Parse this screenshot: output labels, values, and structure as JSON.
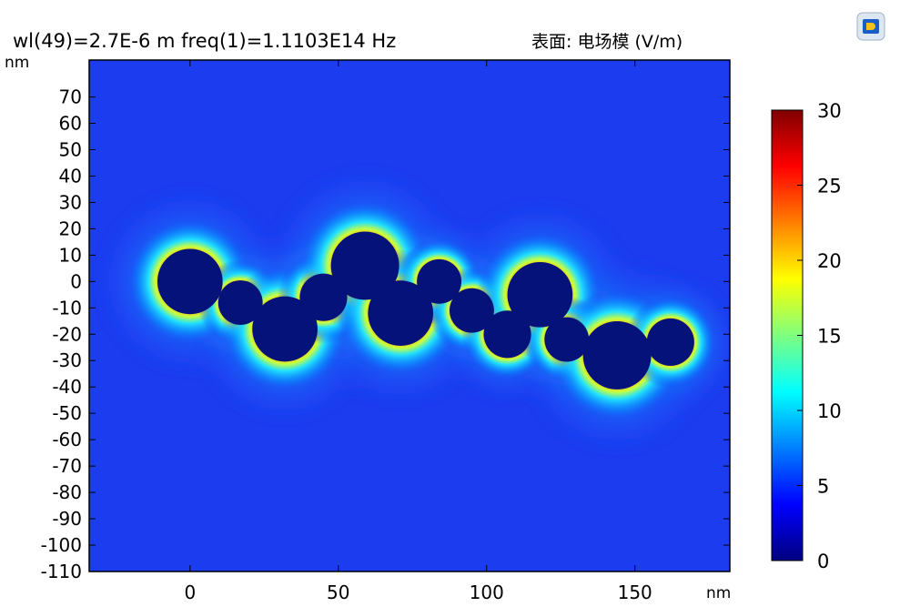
{
  "chart_data": {
    "type": "heatmap",
    "title_prefix": "wl(49)=2.7E-6 m freq(1)=1.1103E14 Hz",
    "title_suffix": "表面: 电场模 (V/m)",
    "x_unit": "nm",
    "y_unit": "nm",
    "xlim": [
      -34,
      182
    ],
    "ylim": [
      -110,
      84
    ],
    "x_ticks": [
      0,
      50,
      100,
      150
    ],
    "y_ticks": [
      70,
      60,
      50,
      40,
      30,
      20,
      10,
      0,
      -10,
      -20,
      -30,
      -40,
      -50,
      -60,
      -70,
      -80,
      -90,
      -100,
      -110
    ],
    "colorbar": {
      "min": 0,
      "max": 30,
      "ticks": [
        0,
        5,
        10,
        15,
        20,
        25,
        30
      ],
      "colormap": [
        "#00007f",
        "#0000ff",
        "#007fff",
        "#00ffff",
        "#7fff7f",
        "#ffff00",
        "#ff7f00",
        "#ff0000",
        "#7f0000"
      ]
    },
    "background_color": "#1c3cf0",
    "particles": [
      {
        "x": 0,
        "y": 0,
        "r": 11
      },
      {
        "x": 17,
        "y": -8,
        "r": 7.5
      },
      {
        "x": 32,
        "y": -18,
        "r": 11
      },
      {
        "x": 45,
        "y": -6,
        "r": 8
      },
      {
        "x": 59,
        "y": 6,
        "r": 11.5
      },
      {
        "x": 71,
        "y": -12,
        "r": 11
      },
      {
        "x": 84,
        "y": 0,
        "r": 7.5
      },
      {
        "x": 95,
        "y": -11,
        "r": 7.5
      },
      {
        "x": 107,
        "y": -20,
        "r": 8
      },
      {
        "x": 118,
        "y": -5,
        "r": 11
      },
      {
        "x": 127,
        "y": -22,
        "r": 7.5
      },
      {
        "x": 144,
        "y": -28,
        "r": 11.5
      },
      {
        "x": 162,
        "y": -23,
        "r": 8
      }
    ]
  },
  "logo_icon": "comsol-logo-icon"
}
